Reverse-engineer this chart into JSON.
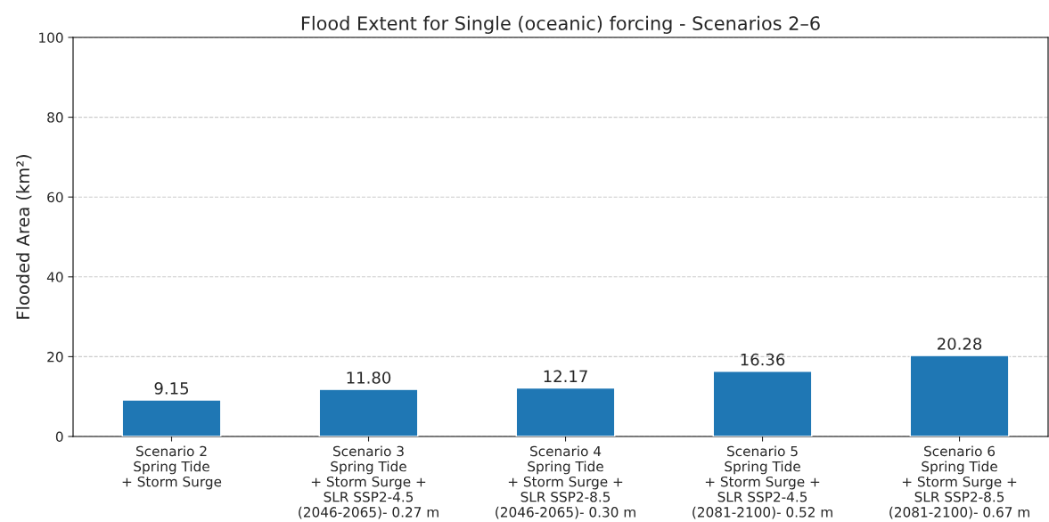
{
  "chart_data": {
    "type": "bar",
    "title": "Flood Extent for Single (oceanic) forcing - Scenarios 2–6",
    "ylabel": "Flooded Area (km²)",
    "categories": [
      "Scenario 2\nSpring Tide\n+ Storm Surge",
      "Scenario 3\nSpring Tide\n+ Storm Surge +\nSLR SSP2-4.5\n(2046-2065)- 0.27 m",
      "Scenario 4\nSpring Tide\n+ Storm Surge +\nSLR SSP2-8.5\n(2046-2065)- 0.30 m",
      "Scenario 5\nSpring Tide\n+ Storm Surge +\nSLR SSP2-4.5\n(2081-2100)- 0.52 m",
      "Scenario 6\nSpring Tide\n+ Storm Surge +\nSLR SSP2-8.5\n(2081-2100)- 0.67 m"
    ],
    "values": [
      9.15,
      11.8,
      12.17,
      16.36,
      20.28
    ],
    "value_labels": [
      "9.15",
      "11.80",
      "12.17",
      "16.36",
      "20.28"
    ],
    "color": "#1f77b4",
    "ylim": [
      0,
      100
    ],
    "yticks": [
      0,
      20,
      40,
      60,
      80,
      100
    ],
    "grid": "y"
  }
}
